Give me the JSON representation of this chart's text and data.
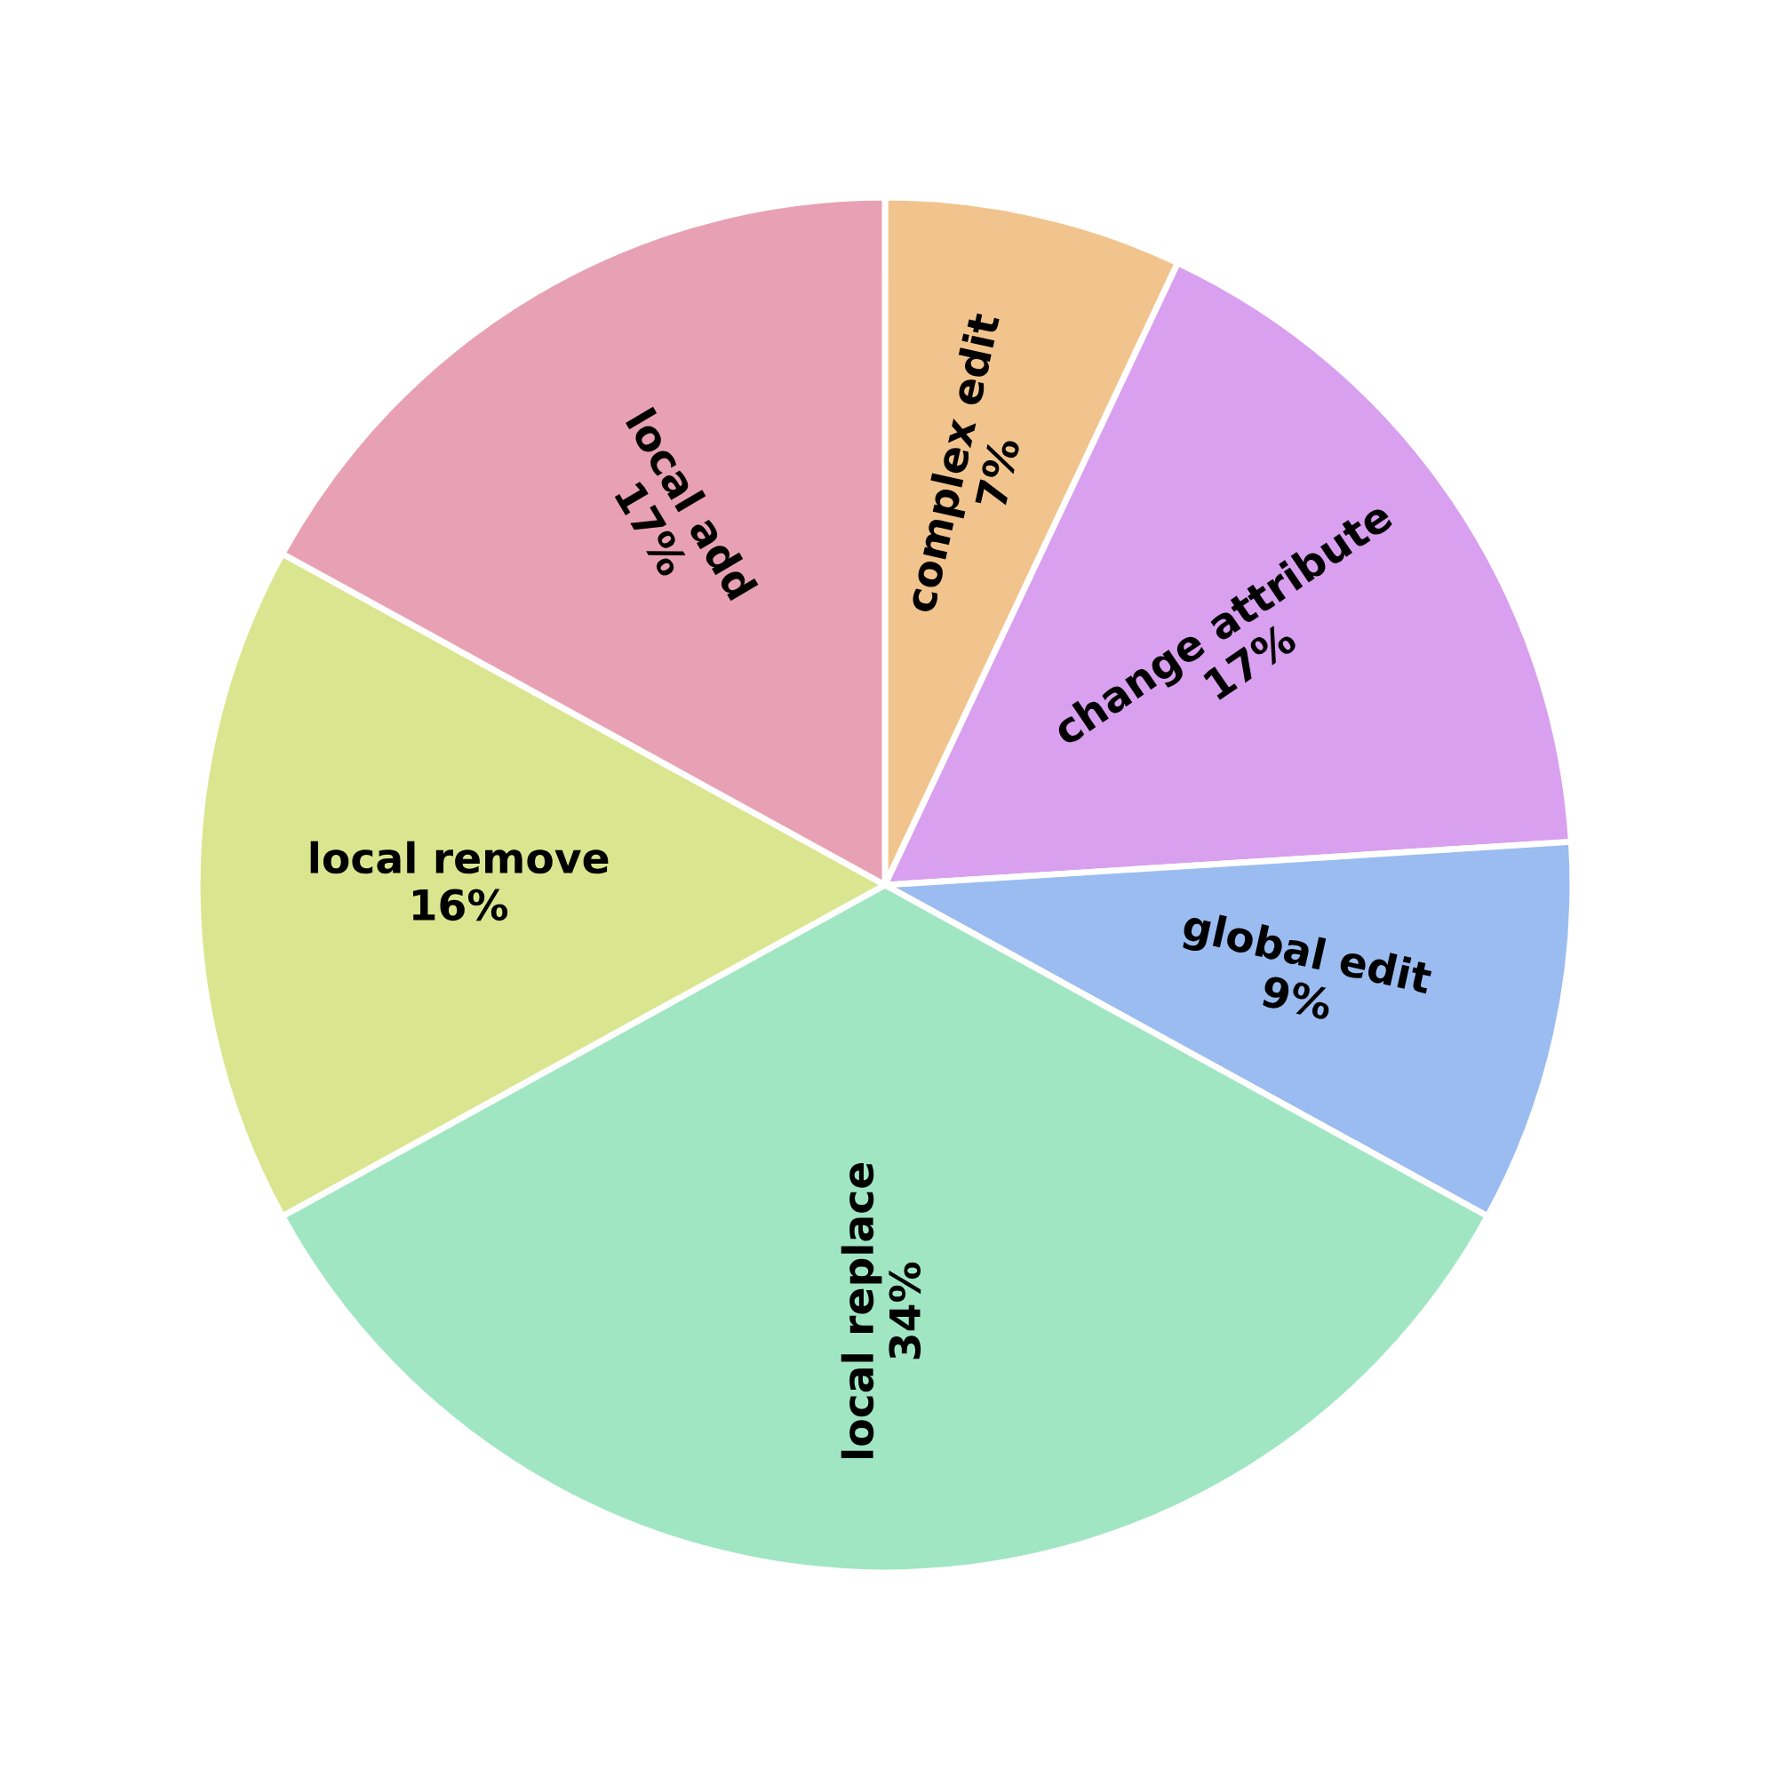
{
  "chart_data": {
    "type": "pie",
    "categories": [
      "complex edit",
      "change attribute",
      "global edit",
      "local replace",
      "local remove",
      "local add"
    ],
    "values": [
      7,
      17,
      9,
      34,
      16,
      17
    ],
    "value_labels": [
      "7%",
      "17%",
      "9%",
      "34%",
      "16%",
      "17%"
    ],
    "colors": [
      "#f2c48d",
      "#d9a0ef",
      "#9bbcf0",
      "#a0e6c3",
      "#dae68f",
      "#e8a1b4"
    ],
    "legend": false
  }
}
